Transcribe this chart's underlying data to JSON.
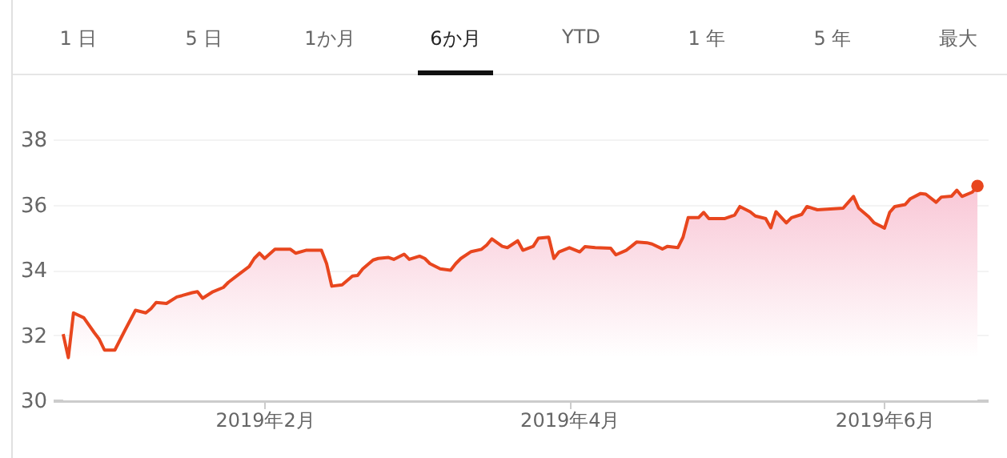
{
  "chart_data": {
    "type": "area",
    "annotations": [
      "1 日",
      "5 日",
      "1か月",
      "6か月",
      "YTD",
      "1 年",
      "5 年",
      "最大"
    ],
    "x": [
      "2018-12-24",
      "2018-12-25",
      "2018-12-26",
      "2018-12-28",
      "2018-12-30",
      "2018-12-31",
      "2019-01-01",
      "2019-01-03",
      "2019-01-05",
      "2019-01-07",
      "2019-01-09",
      "2019-01-10",
      "2019-01-11",
      "2019-01-13",
      "2019-01-15",
      "2019-01-16",
      "2019-01-18",
      "2019-01-19",
      "2019-01-20",
      "2019-01-22",
      "2019-01-24",
      "2019-01-25",
      "2019-01-27",
      "2019-01-29",
      "2019-01-30",
      "2019-01-31",
      "2019-02-01",
      "2019-02-03",
      "2019-02-04",
      "2019-02-06",
      "2019-02-07",
      "2019-02-09",
      "2019-02-12",
      "2019-02-13",
      "2019-02-14",
      "2019-02-16",
      "2019-02-18",
      "2019-02-19",
      "2019-02-20",
      "2019-02-22",
      "2019-02-23",
      "2019-02-25",
      "2019-02-26",
      "2019-02-28",
      "2019-03-01",
      "2019-03-03",
      "2019-03-04",
      "2019-03-05",
      "2019-03-07",
      "2019-03-09",
      "2019-03-10",
      "2019-03-11",
      "2019-03-13",
      "2019-03-15",
      "2019-03-16",
      "2019-03-17",
      "2019-03-19",
      "2019-03-20",
      "2019-03-22",
      "2019-03-23",
      "2019-03-25",
      "2019-03-26",
      "2019-03-28",
      "2019-03-29",
      "2019-03-30",
      "2019-04-01",
      "2019-04-03",
      "2019-04-04",
      "2019-04-06",
      "2019-04-09",
      "2019-04-10",
      "2019-04-12",
      "2019-04-13",
      "2019-04-14",
      "2019-04-16",
      "2019-04-17",
      "2019-04-19",
      "2019-04-20",
      "2019-04-22",
      "2019-04-23",
      "2019-04-24",
      "2019-04-26",
      "2019-04-27",
      "2019-04-28",
      "2019-05-01",
      "2019-05-03",
      "2019-05-04",
      "2019-05-06",
      "2019-05-07",
      "2019-05-09",
      "2019-05-10",
      "2019-05-11",
      "2019-05-13",
      "2019-05-14",
      "2019-05-16",
      "2019-05-17",
      "2019-05-19",
      "2019-05-24",
      "2019-05-26",
      "2019-05-27",
      "2019-05-29",
      "2019-05-30",
      "2019-06-01",
      "2019-06-02",
      "2019-06-03",
      "2019-06-05",
      "2019-06-06",
      "2019-06-08",
      "2019-06-09",
      "2019-06-11",
      "2019-06-12",
      "2019-06-14",
      "2019-06-15",
      "2019-06-16",
      "2019-06-18",
      "2019-06-19"
    ],
    "series": [
      {
        "color": "#e8461e",
        "values": [
          32.03,
          31.31,
          32.68,
          32.53,
          32.08,
          31.87,
          31.54,
          31.54,
          32.16,
          32.76,
          32.68,
          32.81,
          33.0,
          32.97,
          33.17,
          33.21,
          33.3,
          33.33,
          33.13,
          33.33,
          33.46,
          33.62,
          33.86,
          34.1,
          34.35,
          34.51,
          34.35,
          34.63,
          34.63,
          34.63,
          34.51,
          34.6,
          34.6,
          34.19,
          33.5,
          33.54,
          33.81,
          33.83,
          34.03,
          34.3,
          34.35,
          34.38,
          34.32,
          34.48,
          34.32,
          34.42,
          34.35,
          34.19,
          34.03,
          33.99,
          34.19,
          34.35,
          34.56,
          34.63,
          34.76,
          34.95,
          34.72,
          34.68,
          34.89,
          34.6,
          34.72,
          34.97,
          35.0,
          34.35,
          34.55,
          34.68,
          34.55,
          34.71,
          34.68,
          34.66,
          34.46,
          34.6,
          34.72,
          34.85,
          34.83,
          34.79,
          34.64,
          34.72,
          34.68,
          35.0,
          35.6,
          35.6,
          35.76,
          35.57,
          35.57,
          35.68,
          35.94,
          35.78,
          35.65,
          35.57,
          35.29,
          35.78,
          35.44,
          35.6,
          35.7,
          35.94,
          35.84,
          35.89,
          36.25,
          35.89,
          35.62,
          35.44,
          35.28,
          35.76,
          35.94,
          36.0,
          36.18,
          36.34,
          36.32,
          36.07,
          36.23,
          36.26,
          36.44,
          36.25,
          36.38,
          36.57
        ]
      },
      {
        "type": "scatter",
        "color": "#e8461e",
        "x": [
          "2019-06-19"
        ],
        "values": [
          36.57
        ]
      }
    ],
    "xlim": [
      "2018-12-22",
      "2019-06-21"
    ],
    "xticks": [
      {
        "value": "2019-02-01",
        "label": "2019年2月"
      },
      {
        "value": "2019-04-01",
        "label": "2019年4月"
      },
      {
        "value": "2019-06-01",
        "label": "2019年6月"
      }
    ],
    "ylim": [
      30,
      38
    ],
    "yticks": [
      30,
      32,
      34,
      36,
      38
    ],
    "grid": "y"
  }
}
